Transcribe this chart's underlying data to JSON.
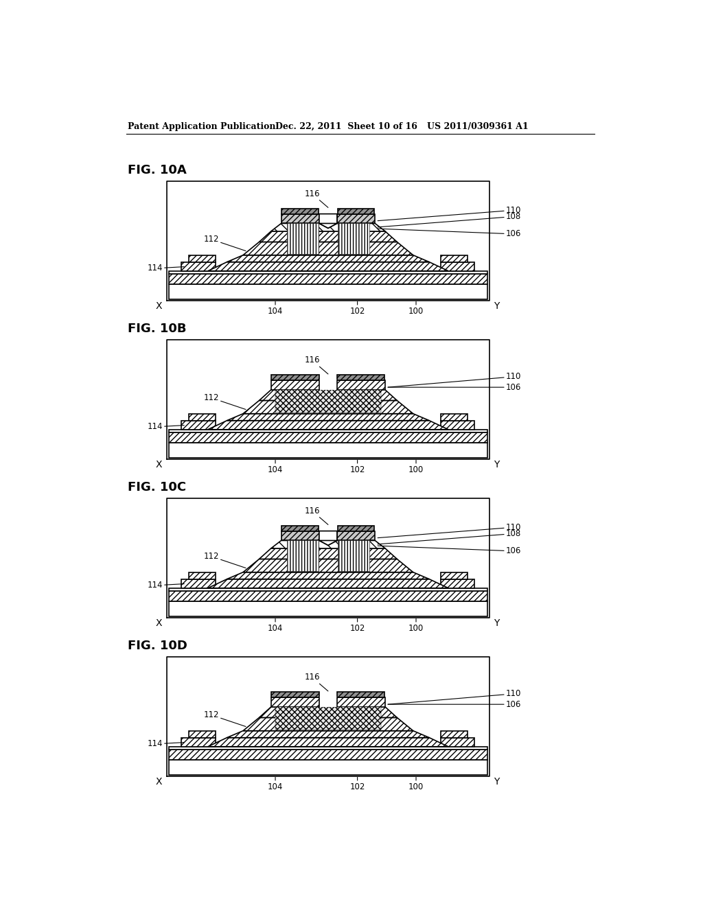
{
  "header_left": "Patent Application Publication",
  "header_middle": "Dec. 22, 2011  Sheet 10 of 16",
  "header_right": "US 2011/0309361 A1",
  "bg": "#ffffff",
  "panels": [
    {
      "name": "FIG. 10A",
      "variant": "A"
    },
    {
      "name": "FIG. 10B",
      "variant": "B"
    },
    {
      "name": "FIG. 10C",
      "variant": "C"
    },
    {
      "name": "FIG. 10D",
      "variant": "D"
    }
  ]
}
